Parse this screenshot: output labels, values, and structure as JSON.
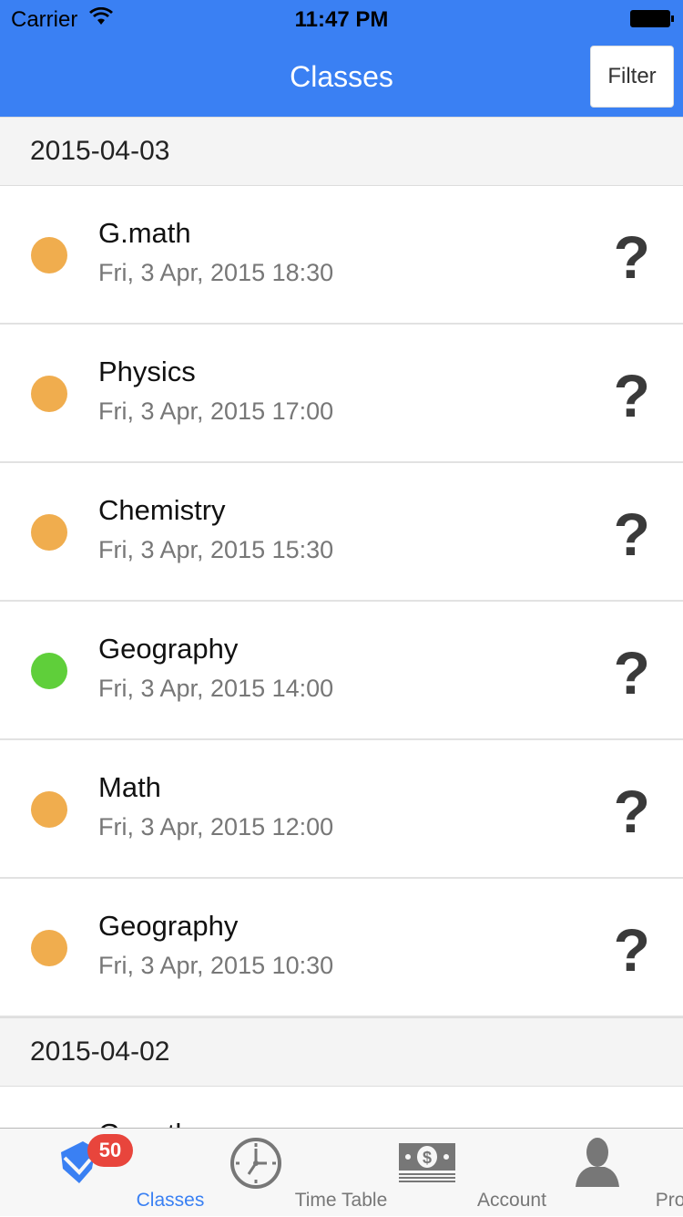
{
  "status_bar": {
    "carrier": "Carrier",
    "time": "11:47 PM"
  },
  "nav": {
    "title": "Classes",
    "filter_label": "Filter"
  },
  "colors": {
    "accent": "#3a80f3",
    "pending": "#f0ad4e",
    "done": "#5fcf3a",
    "badge": "#e8453c"
  },
  "sections": [
    {
      "date": "2015-04-03",
      "items": [
        {
          "name": "G.math",
          "when": "Fri, 3 Apr, 2015 18:30",
          "status": "pending",
          "mark": "?"
        },
        {
          "name": "Physics",
          "when": "Fri, 3 Apr, 2015 17:00",
          "status": "pending",
          "mark": "?"
        },
        {
          "name": "Chemistry",
          "when": "Fri, 3 Apr, 2015 15:30",
          "status": "pending",
          "mark": "?"
        },
        {
          "name": "Geography",
          "when": "Fri, 3 Apr, 2015 14:00",
          "status": "done",
          "mark": "?"
        },
        {
          "name": "Math",
          "when": "Fri, 3 Apr, 2015 12:00",
          "status": "pending",
          "mark": "?"
        },
        {
          "name": "Geography",
          "when": "Fri, 3 Apr, 2015 10:30",
          "status": "pending",
          "mark": "?"
        }
      ]
    },
    {
      "date": "2015-04-02",
      "items": [
        {
          "name": "G.math",
          "when": "",
          "status": "pending",
          "mark": "?"
        }
      ]
    }
  ],
  "tabs": [
    {
      "label": "Classes",
      "icon": "graduation-cap-icon",
      "active": true,
      "badge": "50"
    },
    {
      "label": "Time Table",
      "icon": "clock-icon"
    },
    {
      "label": "Account",
      "icon": "money-icon"
    },
    {
      "label": "Profile",
      "icon": "person-icon"
    }
  ]
}
